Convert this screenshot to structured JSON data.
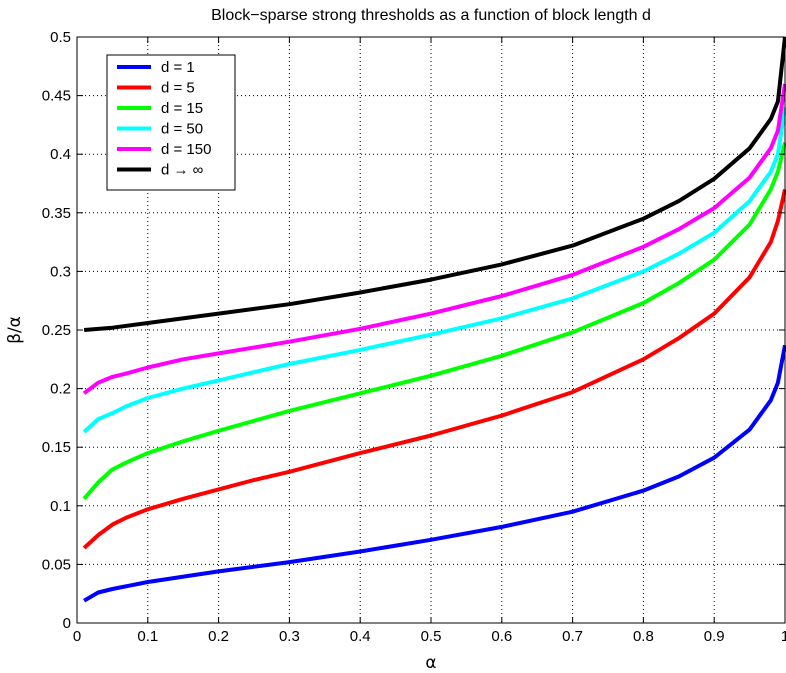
{
  "chart_data": {
    "type": "line",
    "title": "Block−sparse strong thresholds as a function of block length d",
    "xlabel": "α",
    "ylabel": "β/α",
    "xlim": [
      0,
      1
    ],
    "ylim": [
      0,
      0.5
    ],
    "xticks": [
      0,
      0.1,
      0.2,
      0.3,
      0.4,
      0.5,
      0.6,
      0.7,
      0.8,
      0.9,
      1
    ],
    "xtick_labels": [
      "0",
      "0.1",
      "0.2",
      "0.3",
      "0.4",
      "0.5",
      "0.6",
      "0.7",
      "0.8",
      "0.9",
      "1"
    ],
    "yticks": [
      0,
      0.05,
      0.1,
      0.15,
      0.2,
      0.25,
      0.3,
      0.35,
      0.4,
      0.45,
      0.5
    ],
    "ytick_labels": [
      "0",
      "0.05",
      "0.1",
      "0.15",
      "0.2",
      "0.25",
      "0.3",
      "0.35",
      "0.4",
      "0.45",
      "0.5"
    ],
    "grid": true,
    "legend_position": "top-left",
    "series": [
      {
        "name": "d = 1",
        "color": "#0000ff",
        "x": [
          0.01,
          0.03,
          0.05,
          0.1,
          0.2,
          0.3,
          0.4,
          0.5,
          0.6,
          0.7,
          0.8,
          0.85,
          0.9,
          0.95,
          0.98,
          0.99,
          1.0
        ],
        "y": [
          0.019,
          0.026,
          0.029,
          0.035,
          0.044,
          0.052,
          0.061,
          0.071,
          0.082,
          0.095,
          0.113,
          0.125,
          0.141,
          0.165,
          0.19,
          0.205,
          0.237
        ]
      },
      {
        "name": "d = 5",
        "color": "#ff0000",
        "x": [
          0.01,
          0.03,
          0.05,
          0.07,
          0.1,
          0.15,
          0.2,
          0.25,
          0.3,
          0.4,
          0.5,
          0.6,
          0.7,
          0.8,
          0.85,
          0.9,
          0.95,
          0.98,
          0.99,
          1.0
        ],
        "y": [
          0.064,
          0.075,
          0.084,
          0.09,
          0.097,
          0.106,
          0.114,
          0.122,
          0.129,
          0.145,
          0.16,
          0.177,
          0.197,
          0.225,
          0.243,
          0.264,
          0.295,
          0.325,
          0.343,
          0.37
        ]
      },
      {
        "name": "d = 15",
        "color": "#00ff00",
        "x": [
          0.01,
          0.03,
          0.05,
          0.07,
          0.1,
          0.15,
          0.2,
          0.3,
          0.4,
          0.5,
          0.6,
          0.7,
          0.8,
          0.85,
          0.9,
          0.95,
          0.98,
          0.99,
          1.0
        ],
        "y": [
          0.106,
          0.12,
          0.131,
          0.137,
          0.145,
          0.155,
          0.164,
          0.181,
          0.196,
          0.211,
          0.228,
          0.248,
          0.273,
          0.29,
          0.31,
          0.34,
          0.37,
          0.385,
          0.41
        ]
      },
      {
        "name": "d = 50",
        "color": "#00ffff",
        "x": [
          0.01,
          0.03,
          0.05,
          0.07,
          0.1,
          0.15,
          0.2,
          0.3,
          0.4,
          0.5,
          0.6,
          0.7,
          0.8,
          0.85,
          0.9,
          0.95,
          0.98,
          0.99,
          1.0
        ],
        "y": [
          0.163,
          0.174,
          0.179,
          0.185,
          0.192,
          0.2,
          0.207,
          0.221,
          0.233,
          0.246,
          0.26,
          0.277,
          0.3,
          0.315,
          0.333,
          0.36,
          0.385,
          0.4,
          0.44
        ]
      },
      {
        "name": "d = 150",
        "color": "#ff00ff",
        "x": [
          0.01,
          0.03,
          0.05,
          0.07,
          0.1,
          0.15,
          0.2,
          0.3,
          0.4,
          0.5,
          0.6,
          0.7,
          0.8,
          0.85,
          0.9,
          0.95,
          0.98,
          0.99,
          1.0
        ],
        "y": [
          0.196,
          0.205,
          0.21,
          0.213,
          0.218,
          0.225,
          0.23,
          0.24,
          0.251,
          0.264,
          0.279,
          0.297,
          0.321,
          0.336,
          0.354,
          0.38,
          0.405,
          0.42,
          0.46
        ]
      },
      {
        "name": "d → ∞",
        "color": "#000000",
        "x": [
          0.01,
          0.05,
          0.1,
          0.2,
          0.3,
          0.4,
          0.5,
          0.6,
          0.7,
          0.8,
          0.85,
          0.9,
          0.95,
          0.98,
          0.99,
          1.0
        ],
        "y": [
          0.25,
          0.252,
          0.256,
          0.264,
          0.272,
          0.282,
          0.293,
          0.306,
          0.322,
          0.345,
          0.36,
          0.379,
          0.405,
          0.43,
          0.445,
          0.5
        ]
      }
    ]
  }
}
